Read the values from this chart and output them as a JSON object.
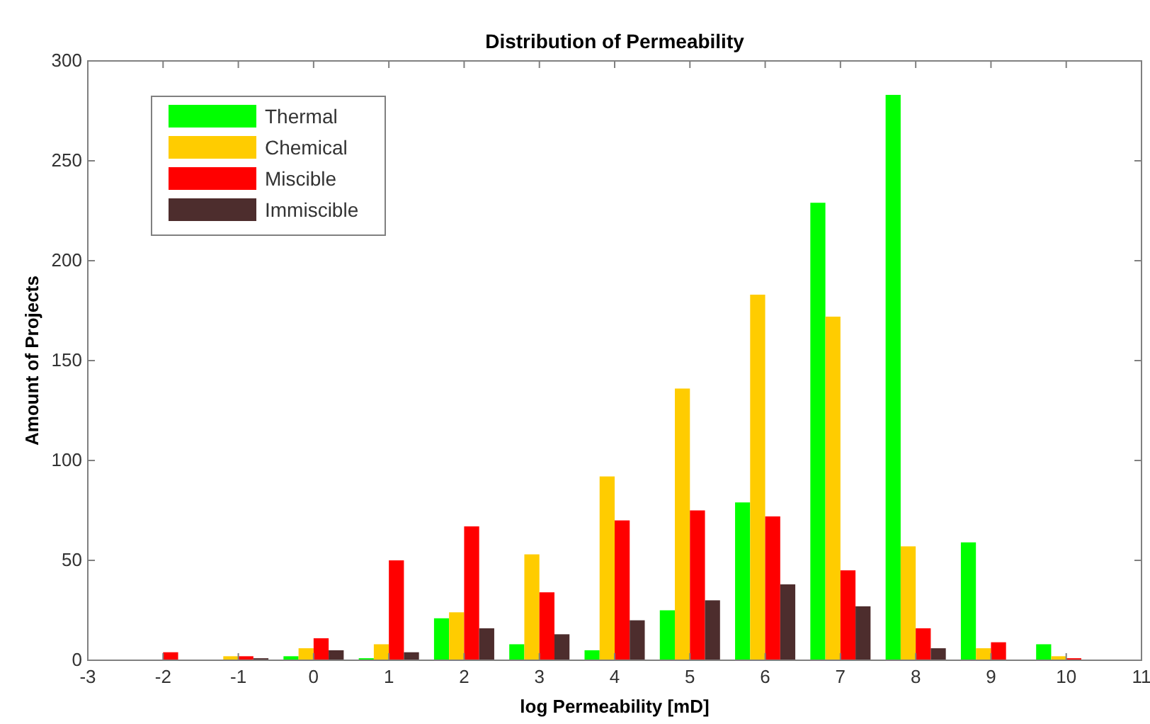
{
  "chart_data": {
    "type": "bar",
    "title": "Distribution of Permeability",
    "xlabel": "log Permeability [mD]",
    "ylabel": "Amount of Projects",
    "x": [
      -2,
      -1,
      0,
      1,
      2,
      3,
      4,
      5,
      6,
      7,
      8,
      9,
      10
    ],
    "series": [
      {
        "name": "Thermal",
        "color": "#00ff00",
        "values": [
          0,
          0,
          2,
          1,
          21,
          8,
          5,
          25,
          79,
          229,
          283,
          59,
          8
        ]
      },
      {
        "name": "Chemical",
        "color": "#ffcc00",
        "values": [
          0,
          2,
          6,
          8,
          24,
          53,
          92,
          136,
          183,
          172,
          57,
          6,
          2
        ]
      },
      {
        "name": "Miscible",
        "color": "#ff0000",
        "values": [
          4,
          2,
          11,
          50,
          67,
          34,
          70,
          75,
          72,
          45,
          16,
          9,
          1
        ]
      },
      {
        "name": "Immiscible",
        "color": "#4d2d2d",
        "values": [
          0,
          1,
          5,
          4,
          16,
          13,
          20,
          30,
          38,
          27,
          6,
          0,
          0
        ]
      }
    ],
    "xlim": [
      -3,
      11
    ],
    "xticks": [
      -3,
      -2,
      -1,
      0,
      1,
      2,
      3,
      4,
      5,
      6,
      7,
      8,
      9,
      10,
      11
    ],
    "ylim": [
      0,
      300
    ],
    "yticks": [
      0,
      50,
      100,
      150,
      200,
      250,
      300
    ],
    "grid": false,
    "legend": "top left"
  }
}
